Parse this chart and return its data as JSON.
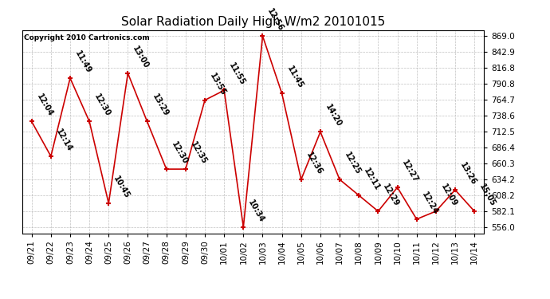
{
  "title": "Solar Radiation Daily High W/m2 20101015",
  "copyright": "Copyright 2010 Cartronics.com",
  "dates": [
    "09/21",
    "09/22",
    "09/23",
    "09/24",
    "09/25",
    "09/26",
    "09/27",
    "09/28",
    "09/29",
    "09/30",
    "10/01",
    "10/02",
    "10/03",
    "10/04",
    "10/05",
    "10/06",
    "10/07",
    "10/08",
    "10/09",
    "10/10",
    "10/11",
    "10/12",
    "10/13",
    "10/14"
  ],
  "values": [
    729,
    672,
    800,
    729,
    595,
    808,
    729,
    651,
    651,
    764,
    780,
    556,
    869,
    775,
    634,
    712,
    634,
    608,
    582,
    621,
    569,
    582,
    617,
    582
  ],
  "labels": [
    "12:04",
    "12:14",
    "11:49",
    "12:30",
    "10:45",
    "13:00",
    "13:29",
    "12:30",
    "12:35",
    "13:55",
    "11:55",
    "10:34",
    "12:56",
    "11:45",
    "12:36",
    "14:20",
    "12:25",
    "12:11",
    "12:29",
    "12:27",
    "12:24",
    "12:09",
    "13:26",
    "15:05"
  ],
  "line_color": "#cc0000",
  "marker_color": "#cc0000",
  "background_color": "#ffffff",
  "grid_color": "#b0b0b0",
  "ylim_min": 546.0,
  "ylim_max": 879.0,
  "yticks": [
    556.0,
    582.1,
    608.2,
    634.2,
    660.3,
    686.4,
    712.5,
    738.6,
    764.7,
    790.8,
    816.8,
    842.9,
    869.0
  ],
  "title_fontsize": 11,
  "label_fontsize": 7,
  "tick_fontsize": 7.5,
  "copyright_fontsize": 6.5
}
